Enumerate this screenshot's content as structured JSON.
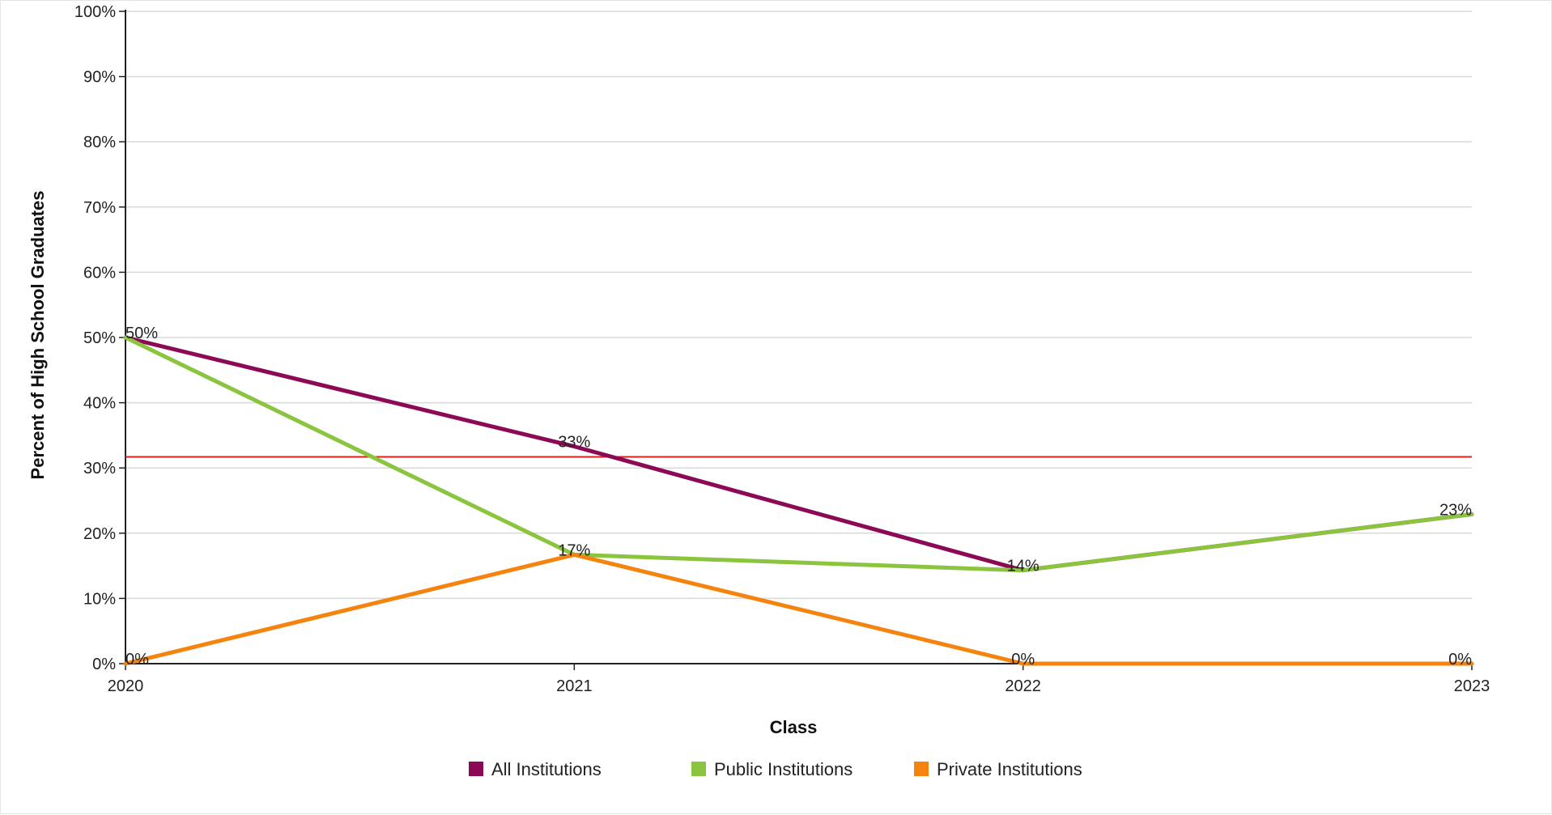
{
  "chart_data": {
    "type": "line",
    "title": "",
    "xlabel": "Class",
    "ylabel": "Percent of High School Graduates",
    "categories": [
      "2020",
      "2021",
      "2022",
      "2023"
    ],
    "ylim": [
      0,
      100
    ],
    "yticks": [
      0,
      10,
      20,
      30,
      40,
      50,
      60,
      70,
      80,
      90,
      100
    ],
    "ytick_labels": [
      "0%",
      "10%",
      "20%",
      "30%",
      "40%",
      "50%",
      "60%",
      "70%",
      "80%",
      "90%",
      "100%"
    ],
    "grid": true,
    "legend_position": "bottom",
    "reference_line": {
      "value": 31.7,
      "color": "#e0201c"
    },
    "series": [
      {
        "name": "All Institutions",
        "color": "#8c0a55",
        "values": [
          50,
          33.3,
          14.3,
          22.9
        ],
        "labels": [
          "50%",
          "33%",
          "14%",
          "23%"
        ]
      },
      {
        "name": "Public Institutions",
        "color": "#8bc43f",
        "values": [
          50,
          16.7,
          14.3,
          22.9
        ],
        "labels": [
          "",
          "",
          "",
          ""
        ]
      },
      {
        "name": "Private Institutions",
        "color": "#f5840f",
        "values": [
          0,
          16.7,
          0,
          0
        ],
        "labels": [
          "0%",
          "17%",
          "0%",
          "0%"
        ]
      }
    ]
  }
}
